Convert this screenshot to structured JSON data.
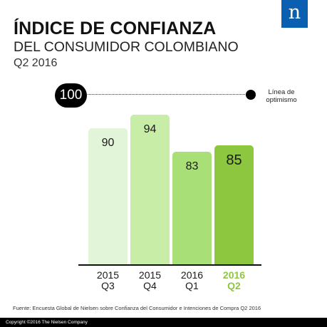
{
  "title": {
    "line1": "ÍNDICE DE CONFIANZA",
    "line2": "DEL CONSUMIDOR COLOMBIANO",
    "line3": "Q2 2016"
  },
  "logo": {
    "letter": "n",
    "color": "#0a5fb0"
  },
  "reference": {
    "value_label": "100",
    "value": 100,
    "label_line1": "Línea de",
    "label_line2": "optimismo"
  },
  "chart_data": {
    "type": "bar",
    "categories": [
      "2015 Q3",
      "2015 Q4",
      "2016 Q1",
      "2016 Q2"
    ],
    "category_lines": [
      [
        "2015",
        "Q3"
      ],
      [
        "2015",
        "Q4"
      ],
      [
        "2016",
        "Q1"
      ],
      [
        "2016",
        "Q2"
      ]
    ],
    "values": [
      90,
      94,
      83,
      85
    ],
    "value_labels": [
      "90",
      "94",
      "83",
      "85"
    ],
    "colors": [
      "#e3f5d9",
      "#c8eda7",
      "#a8e077",
      "#8dc63f"
    ],
    "highlight_index": 3,
    "highlight_color": "#8dc63f",
    "reference_line": 100,
    "ylim": [
      0,
      100
    ],
    "grid": false
  },
  "source": "Fuente: Encuesta Global de Nielsen sobre Confianza del Consumidor e Intenciones de Compra Q2 2016",
  "footer": "Copyright ©2016 The Nielsen Company"
}
